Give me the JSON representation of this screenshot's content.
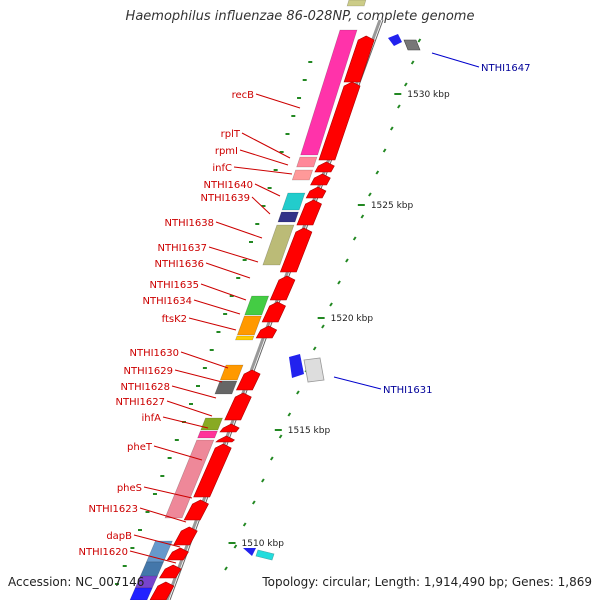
{
  "title": "Haemophilus influenzae 86-028NP, complete genome",
  "footer": {
    "accession": "Accession: NC_007146",
    "topology": "Topology: circular; Length: 1,914,490 bp; Genes: 1,869"
  },
  "colors": {
    "gene_label": "#cc0000",
    "highlight_label": "#000099",
    "tick": "#228822",
    "forward_gene": "#ff0000",
    "backbone": "#888888"
  },
  "scale_labels": [
    "1530 kbp",
    "1525 kbp",
    "1520 kbp",
    "1515 kbp",
    "1510 kbp"
  ],
  "gene_labels": [
    "recB",
    "rplT",
    "rpmI",
    "infC",
    "NTHI1640",
    "NTHI1639",
    "NTHI1638",
    "NTHI1637",
    "NTHI1636",
    "NTHI1635",
    "NTHI1634",
    "ftsK2",
    "NTHI1630",
    "NTHI1629",
    "NTHI1628",
    "NTHI1627",
    "ihfA",
    "pheT",
    "pheS",
    "NTHI1623",
    "dapB",
    "NTHI1620"
  ],
  "highlight_labels": [
    "NTHI1647",
    "NTHI1631"
  ]
}
